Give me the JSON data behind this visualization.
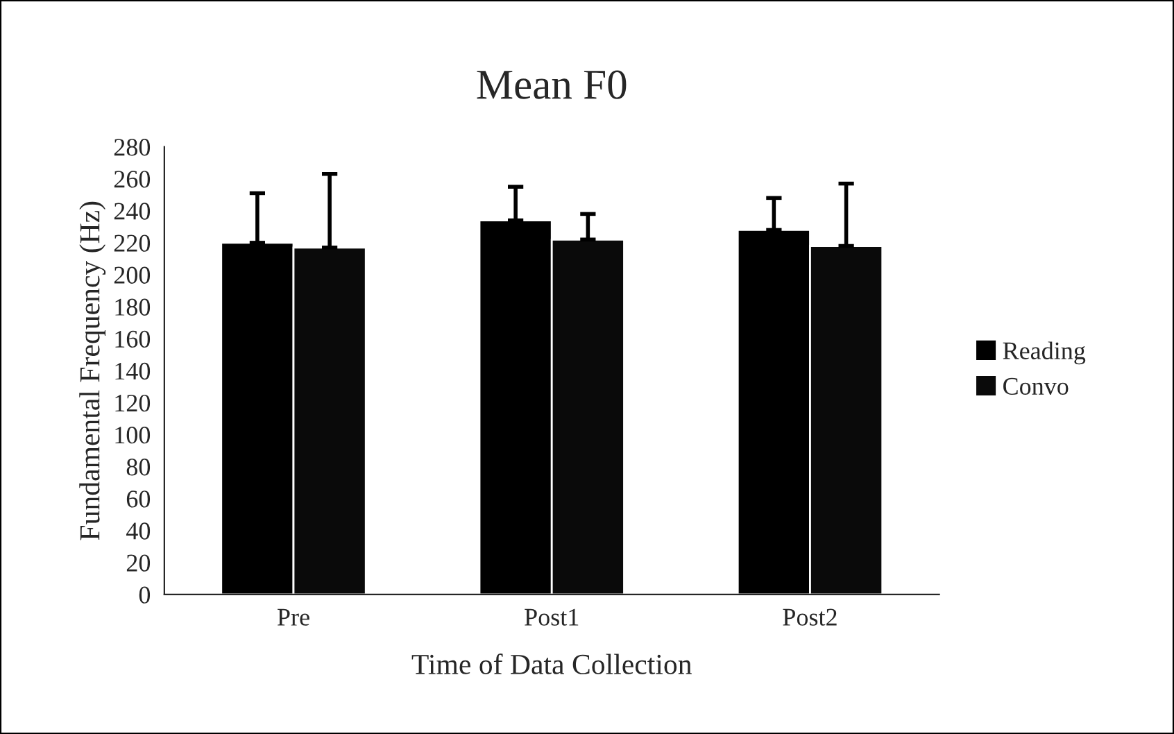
{
  "chart_data": {
    "type": "bar",
    "title": "Mean F0",
    "xlabel": "Time of Data Collection",
    "ylabel": "Fundamental Frequency (Hz)",
    "categories": [
      "Pre",
      "Post1",
      "Post2"
    ],
    "series": [
      {
        "name": "Reading",
        "color": "#000000",
        "values": [
          220,
          234,
          228
        ],
        "errors": [
          [
            220,
            251
          ],
          [
            234,
            255
          ],
          [
            228,
            248
          ]
        ]
      },
      {
        "name": "Convo",
        "color": "#0a0a0a",
        "values": [
          217,
          222,
          218
        ],
        "errors": [
          [
            217,
            263
          ],
          [
            222,
            238
          ],
          [
            218,
            257
          ]
        ]
      }
    ],
    "ylim": [
      0,
      280
    ],
    "yticks": [
      0,
      20,
      40,
      60,
      80,
      100,
      120,
      140,
      160,
      180,
      200,
      220,
      240,
      260,
      280
    ],
    "grid": false,
    "legend": "right"
  }
}
